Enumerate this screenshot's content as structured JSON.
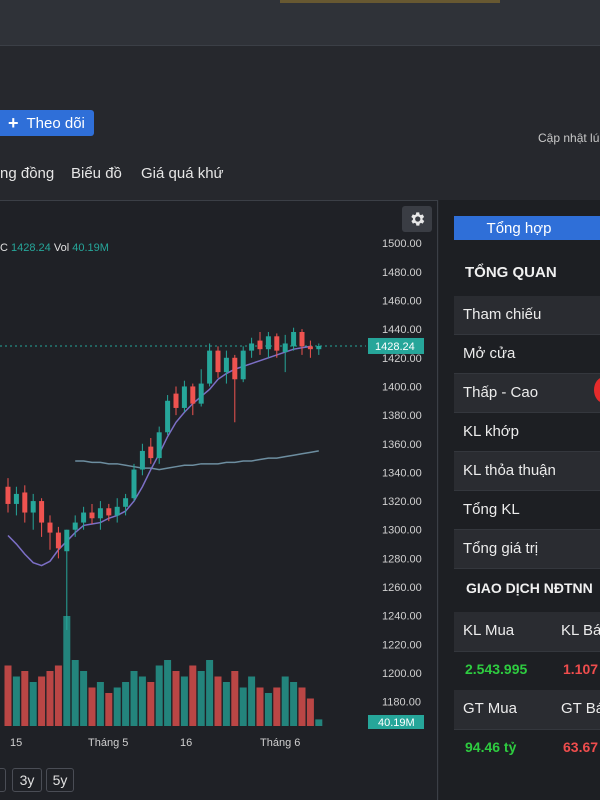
{
  "header": {
    "follow_label": "Theo dõi",
    "update_text": "Cập nhật lú"
  },
  "tabs": [
    "ng đồng",
    "Biểu đồ",
    "Giá quá khứ"
  ],
  "chart": {
    "legend_c_label": "C",
    "legend_c_value": "1428.24",
    "legend_vol_label": "Vol",
    "legend_vol_value": "40.19M",
    "price_badge": "1428.24",
    "vol_badge": "40.19M",
    "x_ticks": [
      "15",
      "Tháng 5",
      "16",
      "Tháng 6"
    ],
    "range_buttons": [
      "3y",
      "5y"
    ]
  },
  "chart_data": {
    "type": "candlestick",
    "ylim": [
      1170,
      1505
    ],
    "y_ticks": [
      1180,
      1200,
      1220,
      1240,
      1260,
      1280,
      1300,
      1320,
      1340,
      1360,
      1380,
      1400,
      1420,
      1440,
      1460,
      1480,
      1500
    ],
    "last_price": 1428.24,
    "candles": [
      {
        "o": 1330,
        "c": 1318,
        "h": 1336,
        "l": 1312,
        "v": 0.55
      },
      {
        "o": 1318,
        "c": 1325,
        "h": 1330,
        "l": 1310,
        "v": 0.45
      },
      {
        "o": 1326,
        "c": 1312,
        "h": 1331,
        "l": 1305,
        "v": 0.5
      },
      {
        "o": 1312,
        "c": 1320,
        "h": 1325,
        "l": 1300,
        "v": 0.4
      },
      {
        "o": 1320,
        "c": 1305,
        "h": 1322,
        "l": 1295,
        "v": 0.45
      },
      {
        "o": 1305,
        "c": 1298,
        "h": 1310,
        "l": 1286,
        "v": 0.5
      },
      {
        "o": 1298,
        "c": 1287,
        "h": 1302,
        "l": 1280,
        "v": 0.55
      },
      {
        "o": 1285,
        "c": 1300,
        "h": 1300,
        "l": 1230,
        "v": 1.0
      },
      {
        "o": 1300,
        "c": 1305,
        "h": 1310,
        "l": 1295,
        "v": 0.6
      },
      {
        "o": 1305,
        "c": 1312,
        "h": 1316,
        "l": 1300,
        "v": 0.5
      },
      {
        "o": 1312,
        "c": 1308,
        "h": 1318,
        "l": 1304,
        "v": 0.35
      },
      {
        "o": 1308,
        "c": 1315,
        "h": 1320,
        "l": 1300,
        "v": 0.4
      },
      {
        "o": 1315,
        "c": 1310,
        "h": 1318,
        "l": 1306,
        "v": 0.3
      },
      {
        "o": 1310,
        "c": 1316,
        "h": 1322,
        "l": 1305,
        "v": 0.35
      },
      {
        "o": 1316,
        "c": 1322,
        "h": 1325,
        "l": 1310,
        "v": 0.4
      },
      {
        "o": 1322,
        "c": 1342,
        "h": 1346,
        "l": 1320,
        "v": 0.5
      },
      {
        "o": 1342,
        "c": 1355,
        "h": 1360,
        "l": 1338,
        "v": 0.45
      },
      {
        "o": 1358,
        "c": 1350,
        "h": 1364,
        "l": 1346,
        "v": 0.4
      },
      {
        "o": 1350,
        "c": 1368,
        "h": 1372,
        "l": 1346,
        "v": 0.55
      },
      {
        "o": 1368,
        "c": 1390,
        "h": 1394,
        "l": 1366,
        "v": 0.6
      },
      {
        "o": 1395,
        "c": 1385,
        "h": 1400,
        "l": 1380,
        "v": 0.5
      },
      {
        "o": 1385,
        "c": 1400,
        "h": 1404,
        "l": 1382,
        "v": 0.45
      },
      {
        "o": 1400,
        "c": 1388,
        "h": 1402,
        "l": 1380,
        "v": 0.55
      },
      {
        "o": 1388,
        "c": 1402,
        "h": 1412,
        "l": 1386,
        "v": 0.5
      },
      {
        "o": 1402,
        "c": 1425,
        "h": 1430,
        "l": 1400,
        "v": 0.6
      },
      {
        "o": 1425,
        "c": 1410,
        "h": 1428,
        "l": 1406,
        "v": 0.45
      },
      {
        "o": 1410,
        "c": 1420,
        "h": 1425,
        "l": 1402,
        "v": 0.4
      },
      {
        "o": 1420,
        "c": 1405,
        "h": 1422,
        "l": 1375,
        "v": 0.5
      },
      {
        "o": 1405,
        "c": 1425,
        "h": 1428,
        "l": 1403,
        "v": 0.35
      },
      {
        "o": 1425,
        "c": 1430,
        "h": 1434,
        "l": 1420,
        "v": 0.45
      },
      {
        "o": 1432,
        "c": 1426,
        "h": 1438,
        "l": 1422,
        "v": 0.35
      },
      {
        "o": 1426,
        "c": 1435,
        "h": 1438,
        "l": 1420,
        "v": 0.3
      },
      {
        "o": 1435,
        "c": 1425,
        "h": 1437,
        "l": 1420,
        "v": 0.35
      },
      {
        "o": 1424,
        "c": 1430,
        "h": 1436,
        "l": 1410,
        "v": 0.45
      },
      {
        "o": 1428,
        "c": 1438,
        "h": 1441,
        "l": 1425,
        "v": 0.4
      },
      {
        "o": 1438,
        "c": 1428,
        "h": 1440,
        "l": 1422,
        "v": 0.35
      },
      {
        "o": 1428,
        "c": 1426,
        "h": 1432,
        "l": 1420,
        "v": 0.25
      },
      {
        "o": 1426,
        "c": 1428.24,
        "h": 1430,
        "l": 1422,
        "v": 0.06
      }
    ],
    "ma_short": [
      1296,
      1290,
      1283,
      1277,
      1275,
      1278,
      1286,
      1292,
      1298,
      1303,
      1304,
      1305,
      1308,
      1310,
      1313,
      1320,
      1330,
      1342,
      1353,
      1365,
      1375,
      1382,
      1388,
      1393,
      1398,
      1405,
      1409,
      1412,
      1414,
      1416,
      1418,
      1420,
      1422,
      1424,
      1426,
      1427,
      1428
    ],
    "ma_long": [
      1348,
      1348,
      1347,
      1347,
      1346,
      1346,
      1345,
      1344,
      1343,
      1343,
      1342,
      1343,
      1344,
      1345,
      1345,
      1346,
      1346,
      1346,
      1347,
      1347,
      1348,
      1348,
      1349,
      1350,
      1350,
      1351,
      1352,
      1353,
      1354,
      1355
    ],
    "colors": {
      "up": "#26a69a",
      "down": "#ef5350",
      "ma_short": "#7c6fc6",
      "ma_long": "#6d8ea0"
    }
  },
  "sidebar": {
    "summary_tab": "Tổng hợp",
    "overview_title": "TỔNG QUAN",
    "rows": [
      "Tham chiếu",
      "Mở cửa",
      "Thấp - Cao",
      "KL khớp",
      "KL thỏa thuận",
      "Tổng KL",
      "Tổng giá trị"
    ],
    "foreign_title": "GIAO DỊCH NĐTNN",
    "kl_mua_label": "KL Mua",
    "kl_ban_label": "KL Bá",
    "kl_mua_value": "2.543.995",
    "kl_ban_value": "1.107",
    "gt_mua_label": "GT Mua",
    "gt_ban_label": "GT Bá",
    "gt_mua_value": "94.46 tỷ",
    "gt_ban_value": "63.67"
  }
}
